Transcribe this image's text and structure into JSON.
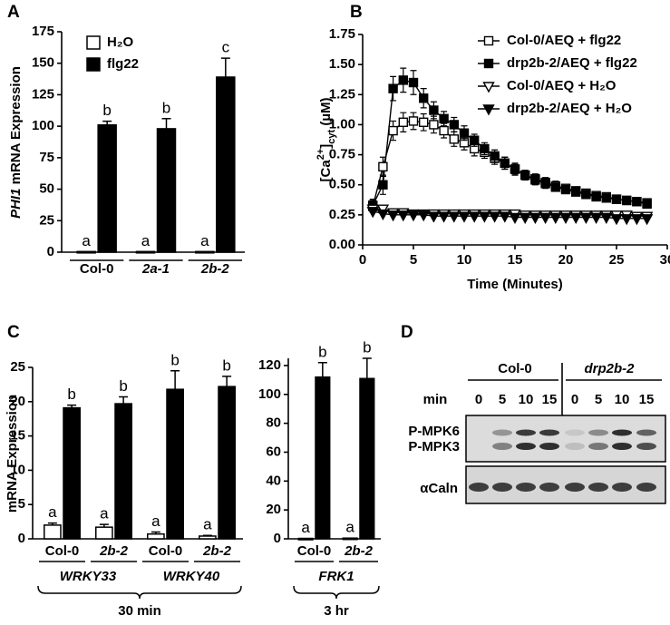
{
  "panels": [
    "A",
    "B",
    "C",
    "D"
  ],
  "chart_data": [
    {
      "type": "bar",
      "ylabel_parts": [
        {
          "text": "PHI1",
          "italic": true
        },
        {
          "text": " mRNA  Expression"
        }
      ],
      "categories": [
        "Col-0",
        "2a-1",
        "2b-2"
      ],
      "category_italic": [
        false,
        true,
        true
      ],
      "series": [
        {
          "name": "H₂O",
          "color": "#ffffff",
          "values": [
            0.5,
            0.5,
            0.5
          ],
          "letters": [
            "a",
            "a",
            "a"
          ]
        },
        {
          "name": "flg22",
          "color": "#000000",
          "values": [
            101,
            98,
            139
          ],
          "errors": [
            3,
            8,
            15
          ],
          "letters": [
            "b",
            "b",
            "c"
          ]
        }
      ],
      "ylim": [
        0,
        175
      ],
      "yticks": [
        0,
        25,
        50,
        75,
        100,
        125,
        150,
        175
      ],
      "legend": "upper-left"
    },
    {
      "type": "line",
      "xlabel": "Time (Minutes)",
      "ylabel_parts": [
        {
          "text": "[Ca"
        },
        {
          "text": "2+",
          "shift": "super"
        },
        {
          "text": "]"
        },
        {
          "text": "cyt",
          "shift": "sub"
        },
        {
          "text": " (µM)"
        }
      ],
      "x": [
        1,
        2,
        3,
        4,
        5,
        6,
        7,
        8,
        9,
        10,
        11,
        12,
        13,
        14,
        15,
        16,
        17,
        18,
        19,
        20,
        21,
        22,
        23,
        24,
        25,
        26,
        27,
        28
      ],
      "series": [
        {
          "name": "Col-0/AEQ + flg22",
          "color": "#000000",
          "marker": "square-open",
          "values": [
            0.32,
            0.65,
            0.95,
            1.02,
            1.03,
            1.02,
            1.0,
            0.95,
            0.88,
            0.85,
            0.8,
            0.77,
            0.72,
            0.68,
            0.63,
            0.58,
            0.55,
            0.52,
            0.49,
            0.47,
            0.45,
            0.43,
            0.41,
            0.4,
            0.38,
            0.37,
            0.36,
            0.35
          ],
          "errors": [
            0.05,
            0.08,
            0.08,
            0.08,
            0.07,
            0.07,
            0.07,
            0.06,
            0.06,
            0.06,
            0.06,
            0.05,
            0.05,
            0.05,
            0.05,
            0.04,
            0.04,
            0.04,
            0.04,
            0.03,
            0.03,
            0.03,
            0.03,
            0.03,
            0.03,
            0.03,
            0.03,
            0.03
          ]
        },
        {
          "name": "drp2b-2/AEQ + flg22",
          "color": "#000000",
          "marker": "square-filled",
          "values": [
            0.33,
            0.5,
            1.3,
            1.37,
            1.35,
            1.22,
            1.12,
            1.05,
            1.0,
            0.93,
            0.87,
            0.8,
            0.74,
            0.68,
            0.63,
            0.58,
            0.54,
            0.51,
            0.48,
            0.46,
            0.44,
            0.42,
            0.4,
            0.39,
            0.38,
            0.37,
            0.36,
            0.34
          ],
          "errors": [
            0.05,
            0.08,
            0.1,
            0.1,
            0.1,
            0.08,
            0.07,
            0.06,
            0.06,
            0.06,
            0.05,
            0.05,
            0.05,
            0.05,
            0.04,
            0.04,
            0.04,
            0.04,
            0.03,
            0.03,
            0.03,
            0.03,
            0.03,
            0.03,
            0.03,
            0.03,
            0.03,
            0.03
          ]
        },
        {
          "name": "Col-0/AEQ + H₂O",
          "color": "#000000",
          "marker": "triangle-open",
          "values": [
            0.3,
            0.3,
            0.27,
            0.27,
            0.26,
            0.26,
            0.26,
            0.26,
            0.26,
            0.26,
            0.26,
            0.26,
            0.26,
            0.26,
            0.26,
            0.25,
            0.25,
            0.25,
            0.25,
            0.25,
            0.25,
            0.25,
            0.25,
            0.25,
            0.25,
            0.25,
            0.24,
            0.24
          ]
        },
        {
          "name": "drp2b-2/AEQ + H₂O",
          "color": "#000000",
          "marker": "triangle-filled",
          "values": [
            0.28,
            0.26,
            0.25,
            0.25,
            0.25,
            0.25,
            0.24,
            0.24,
            0.24,
            0.24,
            0.24,
            0.24,
            0.24,
            0.24,
            0.23,
            0.23,
            0.23,
            0.23,
            0.23,
            0.23,
            0.23,
            0.23,
            0.23,
            0.23,
            0.22,
            0.22,
            0.22,
            0.22
          ]
        }
      ],
      "xlim": [
        0,
        30
      ],
      "xticks": [
        0,
        5,
        10,
        15,
        20,
        25,
        30
      ],
      "ylim": [
        0,
        1.75
      ],
      "yticks": [
        {
          "value": 0,
          "label": "0.00"
        },
        0.25,
        {
          "value": 0.5,
          "label": "0.50"
        },
        0.75,
        {
          "value": 1,
          "label": "1.00"
        },
        1.25,
        {
          "value": 1.5,
          "label": "1.50"
        },
        1.75
      ],
      "legend": "upper-right"
    },
    {
      "type": "bar",
      "ylabel_parts": [
        {
          "text": "mRNA Expression"
        }
      ],
      "categories": [
        "Col-0",
        "2b-2",
        "Col-0",
        "2b-2"
      ],
      "category_italic": [
        false,
        true,
        false,
        true
      ],
      "group_labels": [
        "WRKY33",
        "WRKY40"
      ],
      "bracket_label": "30 min",
      "series": [
        {
          "name": "H₂O",
          "color": "#ffffff",
          "values": [
            2.0,
            1.7,
            0.7,
            0.4
          ],
          "errors": [
            0.3,
            0.4,
            0.3,
            0.1
          ],
          "letters": [
            "a",
            "a",
            "a",
            "a"
          ]
        },
        {
          "name": "flg22",
          "color": "#000000",
          "values": [
            19.1,
            19.7,
            21.8,
            22.2
          ],
          "errors": [
            0.4,
            1.0,
            2.7,
            1.5
          ],
          "letters": [
            "b",
            "b",
            "b",
            "b"
          ]
        }
      ],
      "ylim": [
        0,
        25
      ],
      "yticks": [
        0,
        5,
        10,
        15,
        20,
        25
      ]
    },
    {
      "type": "bar",
      "categories": [
        "Col-0",
        "2b-2"
      ],
      "category_italic": [
        false,
        true
      ],
      "group_labels": [
        "FRK1"
      ],
      "bracket_label": "3 hr",
      "series": [
        {
          "name": "H₂O",
          "color": "#ffffff",
          "values": [
            0.3,
            0.5
          ],
          "letters": [
            "a",
            "a"
          ]
        },
        {
          "name": "flg22",
          "color": "#000000",
          "values": [
            112,
            111
          ],
          "errors": [
            10,
            14
          ],
          "letters": [
            "b",
            "b"
          ]
        }
      ],
      "ylim": [
        0,
        125
      ],
      "yticks": [
        0,
        20,
        40,
        60,
        80,
        100,
        120
      ]
    }
  ],
  "blot": {
    "genotypes": [
      "Col-0",
      "drp2b-2"
    ],
    "time_label": "min",
    "times": [
      "0",
      "5",
      "10",
      "15",
      "0",
      "5",
      "10",
      "15"
    ],
    "rows": [
      "P-MPK6",
      "P-MPK3",
      "αCaln"
    ]
  }
}
